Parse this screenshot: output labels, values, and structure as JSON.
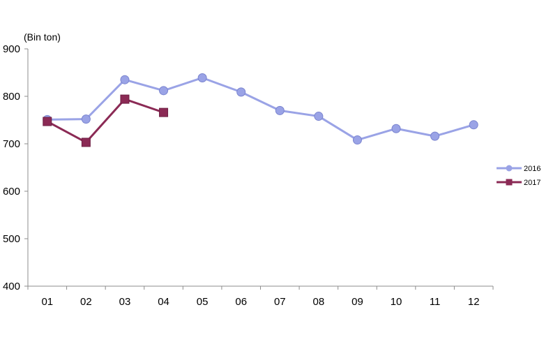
{
  "chart_data": {
    "type": "line",
    "title": "",
    "unit_label": "(Bin ton)",
    "xlabel": "",
    "ylabel": "",
    "categories": [
      "01",
      "02",
      "03",
      "04",
      "05",
      "06",
      "07",
      "08",
      "09",
      "10",
      "11",
      "12"
    ],
    "ylim": [
      400,
      900
    ],
    "yticks": [
      400,
      500,
      600,
      700,
      800,
      900
    ],
    "ytick_labels": [
      "400",
      "500",
      "600",
      "700",
      "800",
      "900"
    ],
    "grid": false,
    "legend_position": "right",
    "series": [
      {
        "name": "2016",
        "color": "#9aa3e6",
        "marker": "circle",
        "values": [
          751,
          752,
          835,
          812,
          839,
          809,
          770,
          758,
          708,
          732,
          716,
          740
        ]
      },
      {
        "name": "2017",
        "color": "#8b2a55",
        "marker": "square",
        "values": [
          747,
          703,
          794,
          766,
          null,
          null,
          null,
          null,
          null,
          null,
          null,
          null
        ]
      }
    ]
  }
}
